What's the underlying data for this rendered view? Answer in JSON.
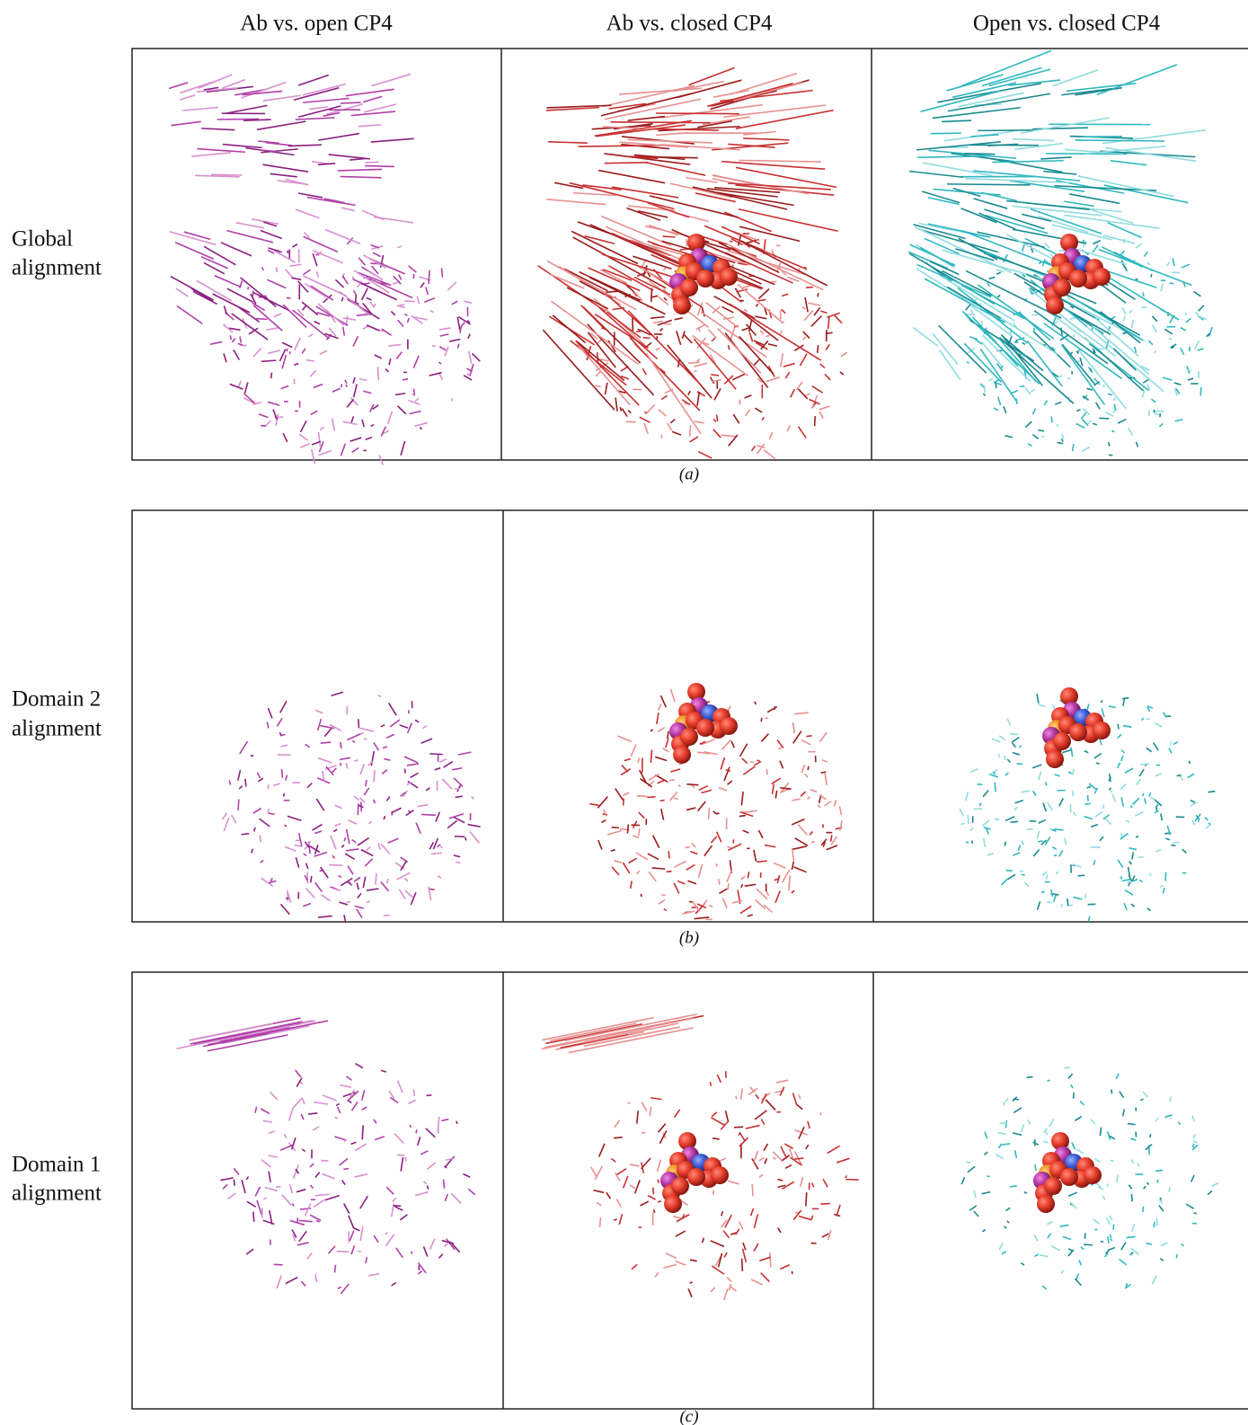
{
  "column_headers": [
    "Ab vs. open CP4",
    "Ab vs. closed CP4",
    "Open vs. closed CP4"
  ],
  "rows": [
    {
      "label_lines": [
        "Global",
        "alignment"
      ],
      "panel_label": "(a)"
    },
    {
      "label_lines": [
        "Domain 2",
        "alignment"
      ],
      "panel_label": "(b)"
    },
    {
      "label_lines": [
        "Domain 1",
        "alignment"
      ],
      "panel_label": "(c)"
    }
  ]
}
